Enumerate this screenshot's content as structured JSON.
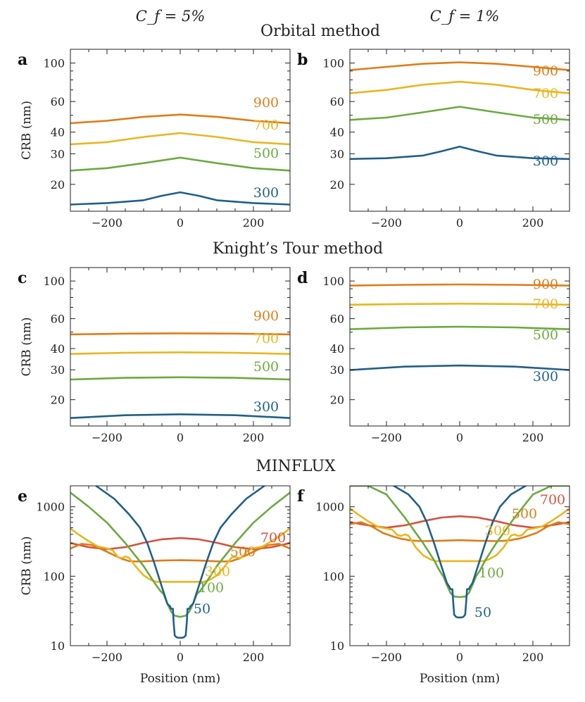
{
  "column_headers": [
    "C_f = 5%",
    "C_f = 1%"
  ],
  "section_titles": [
    "Orbital method",
    "Knight’s Tour method",
    "MINFLUX"
  ],
  "colors": {
    "300": "#1f5f8b",
    "500": "#6aaa3e",
    "700": "#eab51f",
    "900": "#de7c17",
    "50": "#1f5f8b",
    "100": "#6aaa3e",
    "m300": "#eab51f",
    "m500": "#de7c17",
    "m700": "#d4523e"
  },
  "chart_data": [
    {
      "panel": "a",
      "type": "line",
      "method": "Orbital method",
      "cf": "5%",
      "ylabel": "CRB (nm)",
      "xlabel": "",
      "yscale": "log",
      "xlim": [
        -300,
        300
      ],
      "ylim": [
        14,
        120
      ],
      "xticks": [
        -200,
        0,
        200
      ],
      "xtick_labels": [
        "−200",
        "0",
        "200"
      ],
      "yticks": [
        20,
        30,
        40,
        60,
        100
      ],
      "ytick_labels": [
        "20",
        "30",
        "40",
        "60",
        "100"
      ],
      "series": [
        {
          "name": "900",
          "color_key": "900",
          "x": [
            -300,
            -200,
            -100,
            0,
            100,
            200,
            300
          ],
          "y": [
            45,
            46.5,
            49,
            50.5,
            49,
            46.5,
            45
          ]
        },
        {
          "name": "700",
          "color_key": "700",
          "x": [
            -300,
            -200,
            -100,
            0,
            100,
            200,
            300
          ],
          "y": [
            34,
            35,
            37.5,
            39.5,
            37.5,
            35,
            34
          ]
        },
        {
          "name": "500",
          "color_key": "500",
          "x": [
            -300,
            -200,
            -100,
            0,
            100,
            200,
            300
          ],
          "y": [
            24,
            24.8,
            26.5,
            28.5,
            26.5,
            24.8,
            24
          ]
        },
        {
          "name": "300",
          "color_key": "300",
          "x": [
            -300,
            -200,
            -100,
            -50,
            0,
            50,
            100,
            200,
            300
          ],
          "y": [
            15.3,
            15.6,
            16.2,
            17.2,
            18,
            17.2,
            16.2,
            15.6,
            15.3
          ]
        }
      ]
    },
    {
      "panel": "b",
      "type": "line",
      "method": "Orbital method",
      "cf": "1%",
      "ylabel": "",
      "xlabel": "",
      "yscale": "log",
      "xlim": [
        -300,
        300
      ],
      "ylim": [
        14,
        120
      ],
      "xticks": [
        -200,
        0,
        200
      ],
      "xtick_labels": [
        "−200",
        "0",
        "200"
      ],
      "yticks": [
        20,
        30,
        40,
        60,
        100
      ],
      "ytick_labels": [
        "20",
        "30",
        "40",
        "60",
        "100"
      ],
      "series": [
        {
          "name": "900",
          "color_key": "900",
          "x": [
            -300,
            -200,
            -100,
            0,
            100,
            200,
            300
          ],
          "y": [
            91,
            95,
            99,
            101,
            99,
            95,
            91
          ]
        },
        {
          "name": "700",
          "color_key": "700",
          "x": [
            -300,
            -200,
            -100,
            0,
            100,
            200,
            300
          ],
          "y": [
            67,
            70,
            75,
            78,
            75,
            70,
            67
          ]
        },
        {
          "name": "500",
          "color_key": "500",
          "x": [
            -300,
            -200,
            -100,
            0,
            100,
            200,
            300
          ],
          "y": [
            47,
            48.5,
            52,
            56,
            52,
            48.5,
            47
          ]
        },
        {
          "name": "300",
          "color_key": "300",
          "x": [
            -300,
            -200,
            -100,
            -50,
            0,
            50,
            100,
            200,
            300
          ],
          "y": [
            28,
            28.3,
            29.3,
            31,
            33,
            31,
            29.3,
            28.3,
            28
          ]
        }
      ]
    },
    {
      "panel": "c",
      "type": "line",
      "method": "Knight’s Tour method",
      "cf": "5%",
      "ylabel": "CRB (nm)",
      "xlabel": "",
      "yscale": "log",
      "xlim": [
        -300,
        300
      ],
      "ylim": [
        14,
        120
      ],
      "xticks": [
        -200,
        0,
        200
      ],
      "xtick_labels": [
        "−200",
        "0",
        "200"
      ],
      "yticks": [
        20,
        30,
        40,
        60,
        100
      ],
      "ytick_labels": [
        "20",
        "30",
        "40",
        "60",
        "100"
      ],
      "series": [
        {
          "name": "900",
          "color_key": "900",
          "x": [
            -300,
            -150,
            0,
            150,
            300
          ],
          "y": [
            48.5,
            49,
            49.2,
            49,
            48.5
          ]
        },
        {
          "name": "700",
          "color_key": "700",
          "x": [
            -300,
            -150,
            0,
            150,
            300
          ],
          "y": [
            37.2,
            37.8,
            38,
            37.8,
            37.2
          ]
        },
        {
          "name": "500",
          "color_key": "500",
          "x": [
            -300,
            -150,
            0,
            150,
            300
          ],
          "y": [
            26.3,
            26.9,
            27.1,
            26.9,
            26.3
          ]
        },
        {
          "name": "300",
          "color_key": "300",
          "x": [
            -300,
            -150,
            0,
            150,
            300
          ],
          "y": [
            15.6,
            16.2,
            16.4,
            16.2,
            15.6
          ]
        }
      ]
    },
    {
      "panel": "d",
      "type": "line",
      "method": "Knight’s Tour method",
      "cf": "1%",
      "ylabel": "",
      "xlabel": "",
      "yscale": "log",
      "xlim": [
        -300,
        300
      ],
      "ylim": [
        14,
        120
      ],
      "xticks": [
        -200,
        0,
        200
      ],
      "xtick_labels": [
        "−200",
        "0",
        "200"
      ],
      "yticks": [
        20,
        30,
        40,
        60,
        100
      ],
      "ytick_labels": [
        "20",
        "30",
        "40",
        "60",
        "100"
      ],
      "series": [
        {
          "name": "900",
          "color_key": "900",
          "x": [
            -300,
            -150,
            0,
            150,
            300
          ],
          "y": [
            94,
            95,
            95.4,
            95,
            94
          ]
        },
        {
          "name": "700",
          "color_key": "700",
          "x": [
            -300,
            -150,
            0,
            150,
            300
          ],
          "y": [
            72.5,
            73.2,
            73.5,
            73.2,
            72.5
          ]
        },
        {
          "name": "500",
          "color_key": "500",
          "x": [
            -300,
            -150,
            0,
            150,
            300
          ],
          "y": [
            52,
            53.3,
            53.8,
            53.3,
            52
          ]
        },
        {
          "name": "300",
          "color_key": "300",
          "x": [
            -300,
            -150,
            0,
            150,
            300
          ],
          "y": [
            29.9,
            31.3,
            31.8,
            31.3,
            29.9
          ]
        }
      ]
    },
    {
      "panel": "e",
      "type": "line",
      "method": "MINFLUX",
      "cf": "5%",
      "ylabel": "CRB (nm)",
      "xlabel": "Position (nm)",
      "yscale": "log",
      "xlim": [
        -300,
        300
      ],
      "ylim": [
        10,
        2000
      ],
      "xticks": [
        -200,
        0,
        200
      ],
      "xtick_labels": [
        "−200",
        "0",
        "200"
      ],
      "yticks": [
        10,
        100,
        1000
      ],
      "ytick_labels": [
        "10",
        "100",
        "1000"
      ],
      "series": [
        {
          "name": "700",
          "color_key": "m700",
          "x": [
            -300,
            -250,
            -200,
            -150,
            -100,
            -50,
            0,
            50,
            100,
            150,
            200,
            250,
            300
          ],
          "y": [
            300,
            262,
            245,
            262,
            303,
            340,
            355,
            340,
            303,
            262,
            245,
            262,
            300
          ]
        },
        {
          "name": "500",
          "color_key": "m500",
          "x": [
            -300,
            -270,
            -240,
            -210,
            -180,
            -160,
            -150,
            -140,
            -120,
            -100,
            -50,
            0,
            50,
            100,
            120,
            140,
            150,
            160,
            180,
            210,
            240,
            270,
            300
          ],
          "y": [
            250,
            292,
            280,
            238,
            200,
            178,
            172,
            165,
            163,
            164,
            168,
            170,
            168,
            164,
            163,
            165,
            172,
            178,
            200,
            238,
            280,
            292,
            250
          ]
        },
        {
          "name": "300",
          "color_key": "m300",
          "x": [
            -300,
            -280,
            -250,
            -225,
            -205,
            -185,
            -170,
            -160,
            -150,
            -140,
            -120,
            -100,
            -80,
            -65,
            -55,
            -45,
            0,
            45,
            55,
            65,
            80,
            100,
            120,
            140,
            150,
            160,
            170,
            185,
            205,
            225,
            250,
            280,
            300
          ],
          "y": [
            490,
            405,
            320,
            268,
            255,
            238,
            188,
            182,
            192,
            185,
            135,
            103,
            88,
            83,
            83,
            83,
            83,
            83,
            83,
            83,
            88,
            103,
            135,
            185,
            192,
            182,
            188,
            238,
            255,
            268,
            320,
            405,
            490
          ]
        },
        {
          "name": "100",
          "color_key": "100",
          "x": [
            -300,
            -250,
            -200,
            -150,
            -100,
            -70,
            -55,
            -45,
            -35,
            -25,
            -15,
            0,
            15,
            25,
            35,
            45,
            55,
            70,
            100,
            150,
            200,
            250,
            300
          ],
          "y": [
            1600,
            1000,
            590,
            300,
            140,
            80,
            62,
            55,
            40,
            31,
            27,
            26,
            27,
            31,
            40,
            55,
            62,
            80,
            140,
            300,
            590,
            1000,
            1600
          ]
        },
        {
          "name": "50",
          "color_key": "50",
          "x": [
            -230,
            -180,
            -140,
            -110,
            -90,
            -70,
            -50,
            -35,
            -28,
            -25,
            -20,
            -18,
            -15,
            -10,
            -5,
            0,
            5,
            10,
            15,
            18,
            20,
            25,
            28,
            35,
            50,
            70,
            90,
            110,
            140,
            180,
            230
          ],
          "y": [
            2000,
            1300,
            780,
            500,
            300,
            150,
            70,
            40,
            37,
            34,
            34,
            22,
            14,
            13.2,
            13,
            13,
            13,
            13.2,
            14,
            22,
            34,
            34,
            37,
            40,
            70,
            150,
            300,
            500,
            780,
            1300,
            2000
          ]
        }
      ]
    },
    {
      "panel": "f",
      "type": "line",
      "method": "MINFLUX",
      "cf": "1%",
      "ylabel": "",
      "xlabel": "Position (nm)",
      "yscale": "log",
      "xlim": [
        -300,
        300
      ],
      "ylim": [
        10,
        2000
      ],
      "xticks": [
        -200,
        0,
        200
      ],
      "xtick_labels": [
        "−200",
        "0",
        "200"
      ],
      "yticks": [
        10,
        100,
        1000
      ],
      "ytick_labels": [
        "10",
        "100",
        "1000"
      ],
      "series": [
        {
          "name": "700",
          "color_key": "m700",
          "x": [
            -300,
            -250,
            -200,
            -150,
            -100,
            -50,
            0,
            50,
            100,
            150,
            200,
            250,
            300
          ],
          "y": [
            600,
            540,
            500,
            540,
            620,
            700,
            730,
            700,
            620,
            540,
            500,
            540,
            600
          ]
        },
        {
          "name": "500",
          "color_key": "m500",
          "x": [
            -300,
            -270,
            -240,
            -210,
            -180,
            -160,
            -150,
            -140,
            -120,
            -100,
            -50,
            0,
            50,
            100,
            120,
            140,
            150,
            160,
            180,
            210,
            240,
            270,
            300
          ],
          "y": [
            560,
            600,
            520,
            420,
            370,
            345,
            340,
            330,
            323,
            320,
            325,
            330,
            325,
            320,
            323,
            330,
            340,
            345,
            370,
            420,
            520,
            600,
            560
          ]
        },
        {
          "name": "300",
          "color_key": "m300",
          "x": [
            -300,
            -280,
            -250,
            -225,
            -205,
            -185,
            -170,
            -160,
            -150,
            -140,
            -120,
            -100,
            -80,
            -65,
            -55,
            -45,
            0,
            45,
            55,
            65,
            80,
            100,
            120,
            140,
            150,
            160,
            170,
            185,
            205,
            225,
            250,
            280,
            300
          ],
          "y": [
            950,
            790,
            620,
            520,
            490,
            470,
            390,
            380,
            400,
            385,
            260,
            200,
            175,
            165,
            165,
            165,
            165,
            165,
            165,
            165,
            175,
            200,
            260,
            385,
            400,
            380,
            390,
            470,
            490,
            520,
            620,
            790,
            950
          ]
        },
        {
          "name": "100",
          "color_key": "100",
          "x": [
            -300,
            -250,
            -200,
            -150,
            -100,
            -70,
            -55,
            -45,
            -35,
            -25,
            -15,
            0,
            15,
            25,
            35,
            45,
            55,
            70,
            100,
            150,
            200,
            250,
            300
          ],
          "y": [
            2000,
            2000,
            1500,
            700,
            300,
            170,
            120,
            100,
            75,
            57,
            51,
            50,
            51,
            57,
            75,
            100,
            120,
            170,
            300,
            700,
            1500,
            2000,
            2000
          ]
        },
        {
          "name": "50",
          "color_key": "50",
          "x": [
            -180,
            -140,
            -110,
            -90,
            -70,
            -50,
            -35,
            -28,
            -25,
            -20,
            -18,
            -15,
            -10,
            -5,
            0,
            5,
            10,
            15,
            18,
            20,
            25,
            28,
            35,
            50,
            70,
            90,
            110,
            140,
            180
          ],
          "y": [
            2000,
            1500,
            1000,
            600,
            300,
            140,
            80,
            70,
            65,
            65,
            45,
            28,
            26,
            25.5,
            25.5,
            25.5,
            26,
            28,
            45,
            65,
            65,
            70,
            80,
            140,
            300,
            600,
            1000,
            1500,
            2000
          ]
        }
      ]
    }
  ]
}
